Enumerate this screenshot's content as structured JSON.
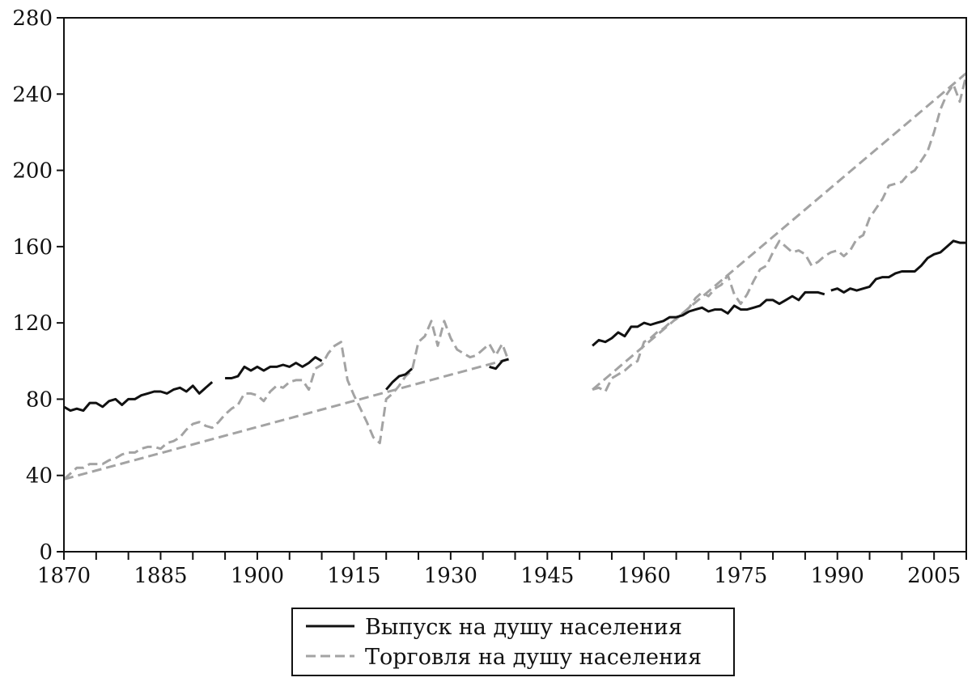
{
  "chart_data": {
    "type": "line",
    "title": "",
    "xlabel": "",
    "ylabel": "",
    "xlim": [
      1870,
      2010
    ],
    "ylim": [
      0,
      280
    ],
    "x_ticks": [
      1870,
      1885,
      1900,
      1915,
      1930,
      1945,
      1960,
      1975,
      1990,
      2005
    ],
    "x_tick_labels": [
      "1870",
      "1885",
      "1900",
      "1915",
      "1930",
      "1945",
      "1960",
      "1975",
      "1990",
      "2005"
    ],
    "x_minor_step": 5,
    "y_ticks": [
      0,
      40,
      80,
      120,
      160,
      200,
      240,
      280
    ],
    "y_tick_labels": [
      "0",
      "40",
      "80",
      "120",
      "160",
      "200",
      "240",
      "280"
    ],
    "grid": false,
    "legend_position": "bottom-center",
    "colors": {
      "output": "#111111",
      "trade": "#a3a3a3",
      "trend": "#a3a3a3"
    },
    "series": [
      {
        "name": "Выпуск на душу населения",
        "style": "solid",
        "segments": [
          [
            [
              1870,
              76
            ],
            [
              1871,
              74
            ],
            [
              1872,
              75
            ],
            [
              1873,
              74
            ],
            [
              1874,
              78
            ],
            [
              1875,
              78
            ],
            [
              1876,
              76
            ],
            [
              1877,
              79
            ],
            [
              1878,
              80
            ],
            [
              1879,
              77
            ],
            [
              1880,
              80
            ],
            [
              1881,
              80
            ],
            [
              1882,
              82
            ],
            [
              1883,
              83
            ],
            [
              1884,
              84
            ],
            [
              1885,
              84
            ],
            [
              1886,
              83
            ],
            [
              1887,
              85
            ],
            [
              1888,
              86
            ],
            [
              1889,
              84
            ],
            [
              1890,
              87
            ],
            [
              1891,
              83
            ],
            [
              1892,
              86
            ],
            [
              1893,
              89
            ]
          ],
          [
            [
              1895,
              91
            ],
            [
              1896,
              91
            ],
            [
              1897,
              92
            ],
            [
              1898,
              97
            ],
            [
              1899,
              95
            ],
            [
              1900,
              97
            ],
            [
              1901,
              95
            ],
            [
              1902,
              97
            ],
            [
              1903,
              97
            ],
            [
              1904,
              98
            ],
            [
              1905,
              97
            ],
            [
              1906,
              99
            ],
            [
              1907,
              97
            ],
            [
              1908,
              99
            ],
            [
              1909,
              102
            ],
            [
              1910,
              100
            ]
          ],
          [
            [
              1920,
              85
            ],
            [
              1921,
              89
            ],
            [
              1922,
              92
            ],
            [
              1923,
              93
            ],
            [
              1924,
              96
            ]
          ],
          [
            [
              1936,
              97
            ],
            [
              1937,
              96
            ],
            [
              1938,
              100
            ],
            [
              1939,
              101
            ]
          ],
          [
            [
              1952,
              108
            ],
            [
              1953,
              111
            ],
            [
              1954,
              110
            ],
            [
              1955,
              112
            ],
            [
              1956,
              115
            ],
            [
              1957,
              113
            ],
            [
              1958,
              118
            ],
            [
              1959,
              118
            ],
            [
              1960,
              120
            ],
            [
              1961,
              119
            ],
            [
              1962,
              120
            ],
            [
              1963,
              121
            ],
            [
              1964,
              123
            ],
            [
              1965,
              123
            ],
            [
              1966,
              124
            ],
            [
              1967,
              126
            ],
            [
              1968,
              127
            ],
            [
              1969,
              128
            ],
            [
              1970,
              126
            ],
            [
              1971,
              127
            ],
            [
              1972,
              127
            ],
            [
              1973,
              125
            ],
            [
              1974,
              129
            ],
            [
              1975,
              127
            ],
            [
              1976,
              127
            ],
            [
              1977,
              128
            ],
            [
              1978,
              129
            ],
            [
              1979,
              132
            ],
            [
              1980,
              132
            ],
            [
              1981,
              130
            ],
            [
              1982,
              132
            ],
            [
              1983,
              134
            ],
            [
              1984,
              132
            ],
            [
              1985,
              136
            ],
            [
              1986,
              136
            ],
            [
              1987,
              136
            ],
            [
              1988,
              135
            ]
          ],
          [
            [
              1989,
              137
            ],
            [
              1990,
              138
            ],
            [
              1991,
              136
            ],
            [
              1992,
              138
            ],
            [
              1993,
              137
            ],
            [
              1994,
              138
            ],
            [
              1995,
              139
            ],
            [
              1996,
              143
            ],
            [
              1997,
              144
            ],
            [
              1998,
              144
            ],
            [
              1999,
              146
            ],
            [
              2000,
              147
            ],
            [
              2001,
              147
            ],
            [
              2002,
              147
            ],
            [
              2003,
              150
            ],
            [
              2004,
              154
            ],
            [
              2005,
              156
            ],
            [
              2006,
              157
            ],
            [
              2007,
              160
            ],
            [
              2008,
              163
            ],
            [
              2009,
              162
            ],
            [
              2010,
              162
            ]
          ]
        ]
      },
      {
        "name": "Торговля на душу населения",
        "style": "dashed",
        "segments": [
          [
            [
              1870,
              38
            ],
            [
              1871,
              41
            ],
            [
              1872,
              44
            ],
            [
              1873,
              44
            ],
            [
              1874,
              46
            ],
            [
              1875,
              46
            ],
            [
              1876,
              46
            ],
            [
              1877,
              48
            ],
            [
              1878,
              49
            ],
            [
              1879,
              51
            ],
            [
              1880,
              52
            ],
            [
              1881,
              52
            ],
            [
              1882,
              54
            ],
            [
              1883,
              55
            ],
            [
              1884,
              55
            ],
            [
              1885,
              54
            ],
            [
              1886,
              57
            ],
            [
              1887,
              58
            ],
            [
              1888,
              60
            ],
            [
              1889,
              64
            ],
            [
              1890,
              67
            ],
            [
              1891,
              68
            ],
            [
              1892,
              66
            ],
            [
              1893,
              65
            ],
            [
              1894,
              68
            ],
            [
              1895,
              72
            ],
            [
              1896,
              75
            ],
            [
              1897,
              77
            ],
            [
              1898,
              83
            ],
            [
              1899,
              83
            ],
            [
              1900,
              82
            ],
            [
              1901,
              79
            ],
            [
              1902,
              84
            ],
            [
              1903,
              87
            ],
            [
              1904,
              86
            ],
            [
              1905,
              89
            ],
            [
              1906,
              90
            ],
            [
              1907,
              90
            ],
            [
              1908,
              85
            ],
            [
              1909,
              96
            ],
            [
              1910,
              98
            ],
            [
              1911,
              104
            ],
            [
              1912,
              108
            ],
            [
              1913,
              110
            ],
            [
              1914,
              90
            ],
            [
              1915,
              82
            ],
            [
              1916,
              75
            ],
            [
              1917,
              68
            ],
            [
              1918,
              60
            ],
            [
              1919,
              57
            ],
            [
              1920,
              80
            ],
            [
              1921,
              83
            ],
            [
              1922,
              87
            ],
            [
              1923,
              92
            ],
            [
              1924,
              95
            ],
            [
              1925,
              110
            ],
            [
              1926,
              113
            ],
            [
              1927,
              121
            ],
            [
              1928,
              108
            ],
            [
              1929,
              121
            ],
            [
              1930,
              112
            ],
            [
              1931,
              106
            ],
            [
              1932,
              104
            ],
            [
              1933,
              102
            ],
            [
              1934,
              103
            ],
            [
              1935,
              106
            ],
            [
              1936,
              109
            ],
            [
              1937,
              103
            ],
            [
              1938,
              109
            ],
            [
              1939,
              100
            ]
          ],
          [
            [
              1952,
              85
            ],
            [
              1953,
              86
            ],
            [
              1954,
              84
            ],
            [
              1955,
              91
            ],
            [
              1956,
              93
            ],
            [
              1957,
              95
            ],
            [
              1958,
              98
            ],
            [
              1959,
              100
            ],
            [
              1960,
              110
            ],
            [
              1961,
              112
            ],
            [
              1962,
              115
            ],
            [
              1963,
              117
            ],
            [
              1964,
              120
            ],
            [
              1965,
              122
            ],
            [
              1966,
              125
            ],
            [
              1967,
              128
            ],
            [
              1968,
              133
            ],
            [
              1969,
              136
            ],
            [
              1970,
              134
            ],
            [
              1971,
              138
            ],
            [
              1972,
              140
            ],
            [
              1973,
              145
            ],
            [
              1974,
              135
            ],
            [
              1975,
              130
            ],
            [
              1976,
              135
            ],
            [
              1977,
              142
            ],
            [
              1978,
              148
            ],
            [
              1979,
              150
            ],
            [
              1980,
              157
            ],
            [
              1981,
              163
            ],
            [
              1982,
              160
            ],
            [
              1983,
              157
            ],
            [
              1984,
              158
            ],
            [
              1985,
              156
            ],
            [
              1986,
              150
            ],
            [
              1987,
              152
            ],
            [
              1988,
              155
            ],
            [
              1989,
              157
            ],
            [
              1990,
              158
            ],
            [
              1991,
              155
            ],
            [
              1992,
              158
            ],
            [
              1993,
              164
            ],
            [
              1994,
              166
            ],
            [
              1995,
              175
            ],
            [
              1996,
              180
            ],
            [
              1997,
              185
            ],
            [
              1998,
              192
            ],
            [
              1999,
              193
            ],
            [
              2000,
              194
            ],
            [
              2001,
              198
            ],
            [
              2002,
              200
            ],
            [
              2003,
              205
            ],
            [
              2004,
              210
            ],
            [
              2005,
              220
            ],
            [
              2006,
              232
            ],
            [
              2007,
              240
            ],
            [
              2008,
              245
            ],
            [
              2009,
              236
            ],
            [
              2010,
              250
            ]
          ]
        ]
      },
      {
        "name": "",
        "style": "dashed",
        "segments": [
          [
            [
              1870,
              38
            ],
            [
              1939,
              101
            ]
          ],
          [
            [
              1952,
              85
            ],
            [
              2010,
              251
            ]
          ]
        ]
      }
    ],
    "legend": [
      {
        "label": "Выпуск на душу населения",
        "style": "solid"
      },
      {
        "label": "Торговля на душу населения",
        "style": "dashed"
      }
    ]
  }
}
